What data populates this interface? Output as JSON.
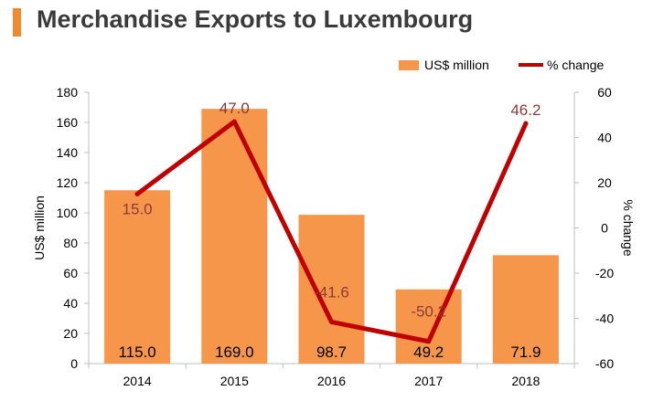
{
  "title": "Merchandise Exports to Luxembourg",
  "colors": {
    "bar": "#f5964a",
    "line": "#c00000",
    "line_label": "#8b3a3a",
    "accent": "#f08a31"
  },
  "chart_data": {
    "type": "bar+line",
    "categories": [
      "2014",
      "2015",
      "2016",
      "2017",
      "2018"
    ],
    "series": [
      {
        "name": "US$ million",
        "type": "bar",
        "axis": "left",
        "values": [
          115.0,
          169.0,
          98.7,
          49.2,
          71.9
        ],
        "labels": [
          "115.0",
          "169.0",
          "98.7",
          "49.2",
          "71.9"
        ]
      },
      {
        "name": "% change",
        "type": "line",
        "axis": "right",
        "values": [
          15.0,
          47.0,
          -41.6,
          -50.2,
          46.2
        ],
        "labels": [
          "15.0",
          "47.0",
          "-41.6",
          "-50.2",
          "46.2"
        ]
      }
    ],
    "ylabel": "US$ million",
    "y2label": "% change",
    "ylim": [
      0,
      180
    ],
    "y2lim": [
      -60,
      60
    ],
    "yticks": [
      "0",
      "20",
      "40",
      "60",
      "80",
      "100",
      "120",
      "140",
      "160",
      "180"
    ],
    "y2ticks": [
      "-60",
      "-40",
      "-20",
      "0",
      "20",
      "40",
      "60"
    ],
    "legend_position": "top-right",
    "grid": false
  }
}
